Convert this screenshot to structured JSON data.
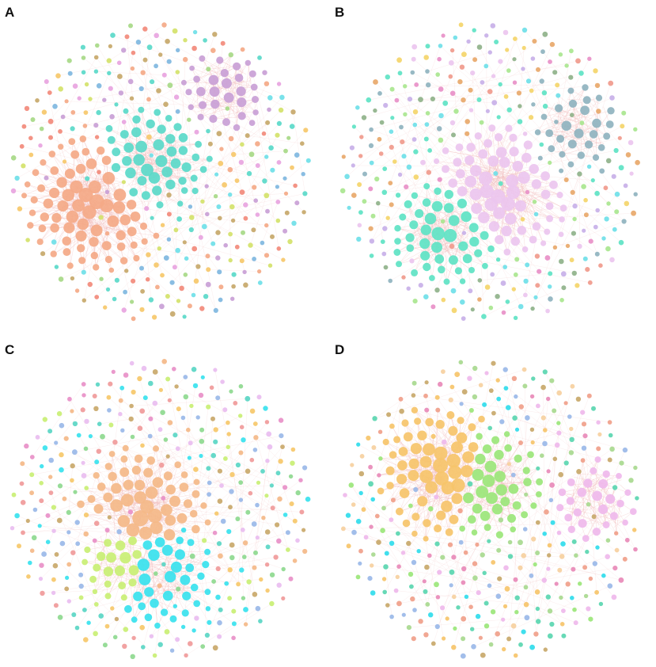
{
  "panels": [
    {
      "label": "A",
      "palette": [
        "#f4a987",
        "#c9a0d6",
        "#5ad9c9",
        "#6fe0e8",
        "#d4e26a",
        "#f28a7b",
        "#e8a4e0",
        "#7fb7e0",
        "#c7a86a",
        "#a7d987",
        "#f6c86a"
      ],
      "hubs": [
        {
          "color": "#f4a987",
          "weight": 3
        },
        {
          "color": "#5ad9c9",
          "weight": 2
        },
        {
          "color": "#c9a0d6",
          "weight": 1
        }
      ]
    },
    {
      "label": "B",
      "palette": [
        "#f09a8c",
        "#f4d56a",
        "#8fb3bf",
        "#5ee3c4",
        "#ecc6ef",
        "#e890c8",
        "#8fb28a",
        "#6fe0e8",
        "#a9e68f",
        "#c8b0e8",
        "#e8a86a"
      ],
      "hubs": [
        {
          "color": "#ecc6ef",
          "weight": 3
        },
        {
          "color": "#5ee3c4",
          "weight": 2
        },
        {
          "color": "#8fb3bf",
          "weight": 1
        }
      ]
    },
    {
      "label": "C",
      "palette": [
        "#f4b888",
        "#e9bdf0",
        "#38e2ee",
        "#c9ef74",
        "#f6c86a",
        "#5ad6c4",
        "#f09a9a",
        "#9ab8e8",
        "#c9a86a",
        "#8ed98f",
        "#e890c8"
      ],
      "hubs": [
        {
          "color": "#f4b888",
          "weight": 3
        },
        {
          "color": "#38e2ee",
          "weight": 2
        },
        {
          "color": "#c9ef74",
          "weight": 1
        }
      ]
    },
    {
      "label": "D",
      "palette": [
        "#f6c46a",
        "#30dcec",
        "#9be67a",
        "#efb9ec",
        "#5ad6b0",
        "#f0a08a",
        "#c8a86a",
        "#9ab8e8",
        "#e88ab8",
        "#a8d98f",
        "#f6d0a0"
      ],
      "hubs": [
        {
          "color": "#f6c46a",
          "weight": 3
        },
        {
          "color": "#9be67a",
          "weight": 2
        },
        {
          "color": "#efb9ec",
          "weight": 1
        }
      ]
    }
  ],
  "edge_color": "#f2b8b8"
}
